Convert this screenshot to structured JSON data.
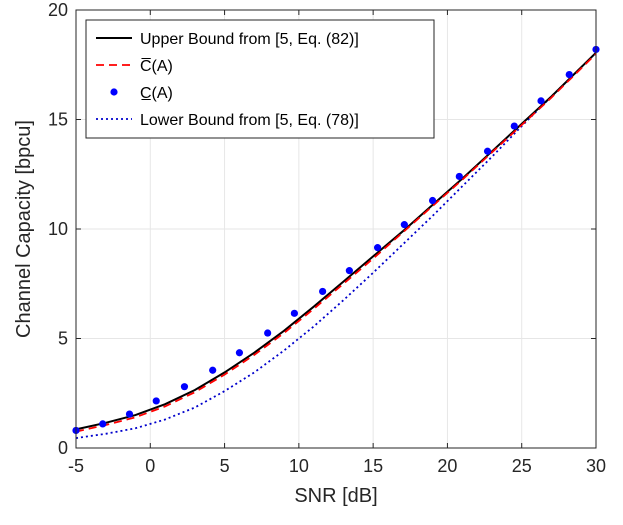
{
  "chart_data": {
    "type": "line",
    "xlabel": "SNR [dB]",
    "ylabel": "Channel Capacity [bpcu]",
    "xlim": [
      -5,
      30
    ],
    "ylim": [
      0,
      20
    ],
    "xticks": [
      -5,
      0,
      5,
      10,
      15,
      20,
      25,
      30
    ],
    "yticks": [
      0,
      5,
      10,
      15,
      20
    ],
    "xtick_labels": [
      "-5",
      "0",
      "5",
      "10",
      "15",
      "20",
      "25",
      "30"
    ],
    "ytick_labels": [
      "0",
      "5",
      "10",
      "15",
      "20"
    ],
    "grid": true,
    "legend_position": "top-left",
    "series": [
      {
        "name": "Upper Bound from [5, Eq. (82)]",
        "style": "solid",
        "color": "#000000",
        "x": [
          -5,
          -3,
          -1,
          1,
          3,
          5,
          7,
          9,
          11,
          13,
          15,
          17,
          19,
          21,
          23,
          25,
          27,
          30
        ],
        "y": [
          0.85,
          1.15,
          1.5,
          2.0,
          2.65,
          3.45,
          4.35,
          5.35,
          6.45,
          7.6,
          8.75,
          9.9,
          11.1,
          12.3,
          13.55,
          14.8,
          16.05,
          18.05
        ]
      },
      {
        "name": "C̅(A)",
        "style": "dashed",
        "color": "#ff0000",
        "x": [
          -5,
          -3,
          -1,
          1,
          3,
          5,
          7,
          9,
          11,
          13,
          15,
          17,
          19,
          21,
          23,
          25,
          27,
          30
        ],
        "y": [
          0.75,
          1.05,
          1.4,
          1.9,
          2.55,
          3.35,
          4.25,
          5.25,
          6.35,
          7.5,
          8.65,
          9.85,
          11.05,
          12.25,
          13.5,
          14.75,
          16.0,
          18.0
        ]
      },
      {
        "name": "C̲(A)",
        "style": "markers",
        "color": "#0000ff",
        "x": [
          -5,
          -3.2,
          -1.4,
          0.4,
          2.3,
          4.2,
          6.0,
          7.9,
          9.7,
          11.6,
          13.4,
          15.3,
          17.1,
          19.0,
          20.8,
          22.7,
          24.5,
          26.3,
          28.2,
          30.0
        ],
        "y": [
          0.8,
          1.1,
          1.55,
          2.15,
          2.8,
          3.55,
          4.35,
          5.25,
          6.15,
          7.15,
          8.1,
          9.15,
          10.2,
          11.3,
          12.4,
          13.55,
          14.7,
          15.85,
          17.05,
          18.2
        ]
      },
      {
        "name": "Lower Bound from [5, Eq. (78)]",
        "style": "dotted",
        "color": "#0000cc",
        "x": [
          -5,
          -3,
          -1,
          1,
          3,
          5,
          7,
          9,
          11,
          13,
          15,
          17,
          19,
          21,
          23,
          25,
          27,
          30
        ],
        "y": [
          0.45,
          0.65,
          0.9,
          1.3,
          1.85,
          2.6,
          3.45,
          4.45,
          5.55,
          6.75,
          8.0,
          9.3,
          10.6,
          11.95,
          13.3,
          14.7,
          16.05,
          18.05
        ]
      }
    ]
  }
}
